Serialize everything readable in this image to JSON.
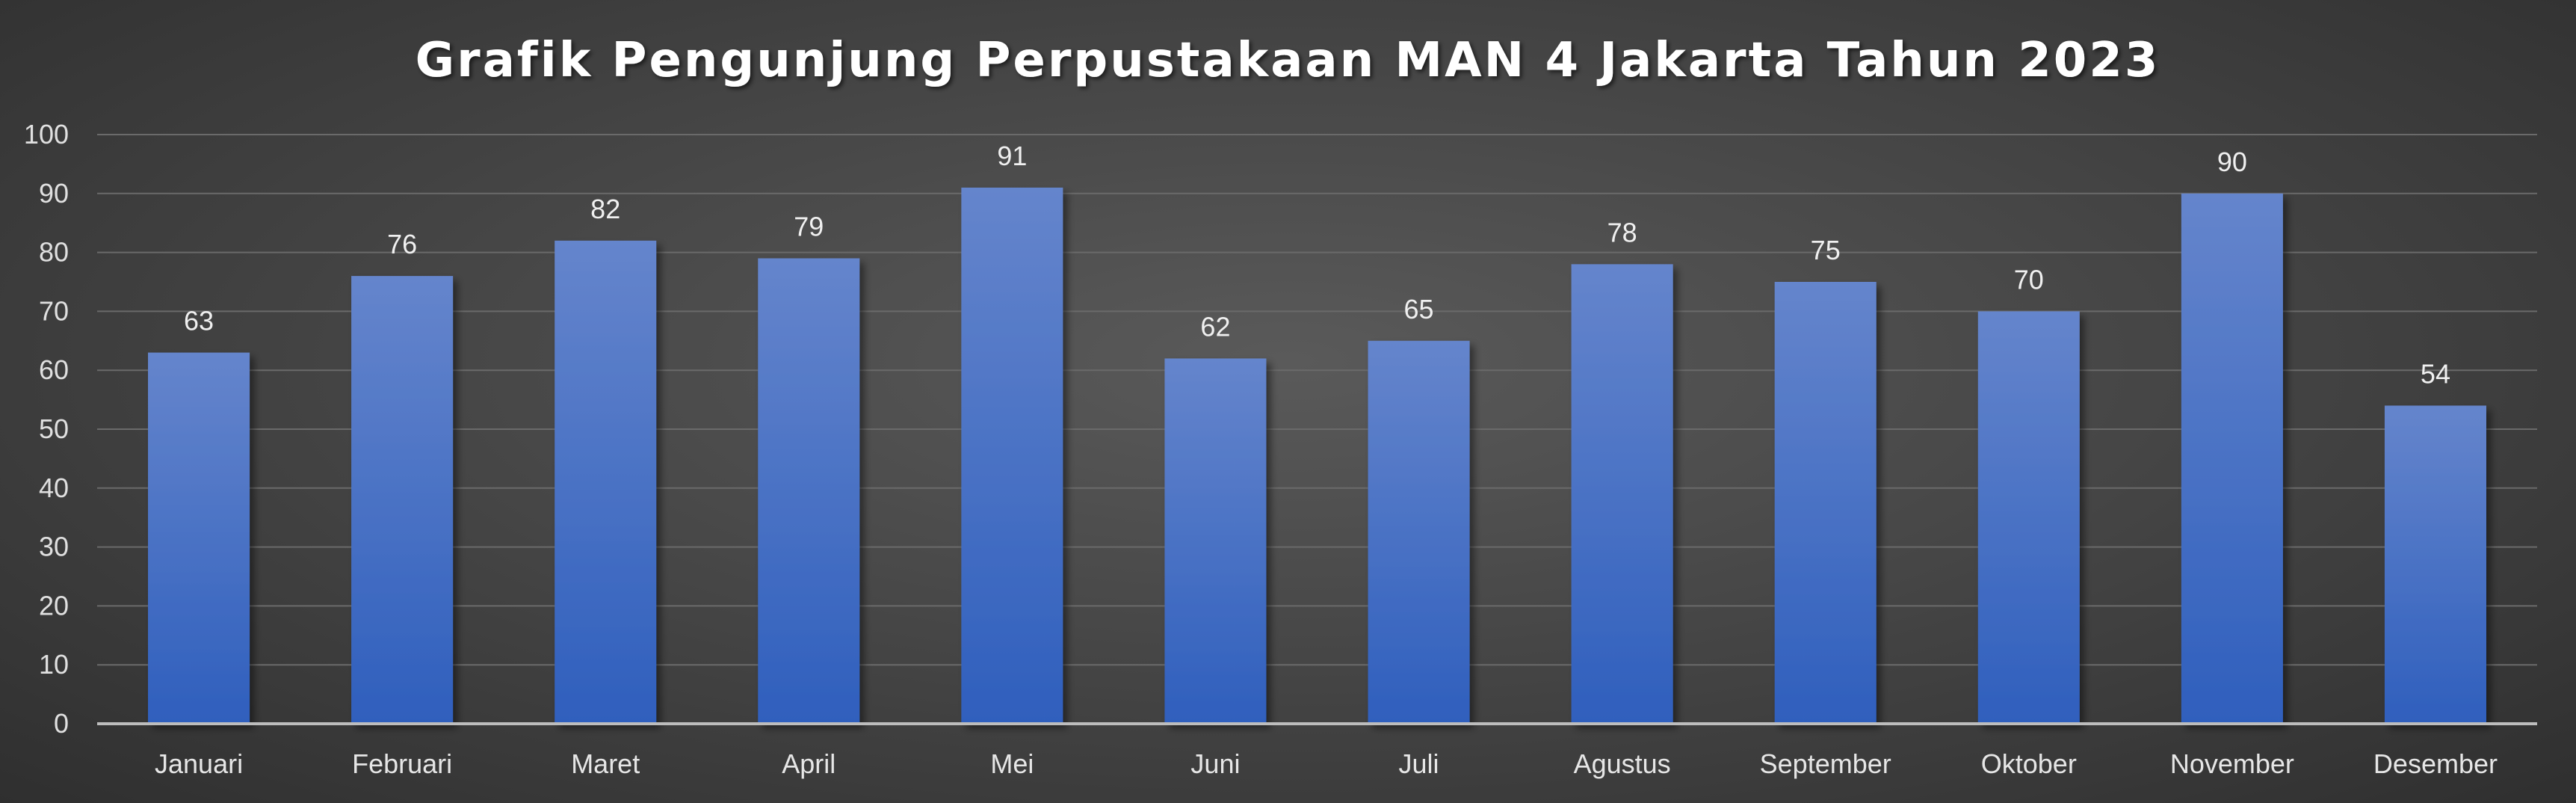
{
  "chart_data": {
    "type": "bar",
    "title": "Grafik Pengunjung Perpustakaan MAN 4 Jakarta Tahun 2023",
    "xlabel": "",
    "ylabel": "",
    "categories": [
      "Januari",
      "Februari",
      "Maret",
      "April",
      "Mei",
      "Juni",
      "Juli",
      "Agustus",
      "September",
      "Oktober",
      "November",
      "Desember"
    ],
    "values": [
      63,
      76,
      82,
      79,
      91,
      62,
      65,
      78,
      75,
      70,
      90,
      54
    ],
    "ylim": [
      0,
      100
    ],
    "yticks": [
      0,
      10,
      20,
      30,
      40,
      50,
      60,
      70,
      80,
      90,
      100
    ],
    "grid": true,
    "legend": "none",
    "bar_color_top": "#6585cc",
    "bar_color_bottom": "#2f5fbd",
    "background": "#474747"
  }
}
